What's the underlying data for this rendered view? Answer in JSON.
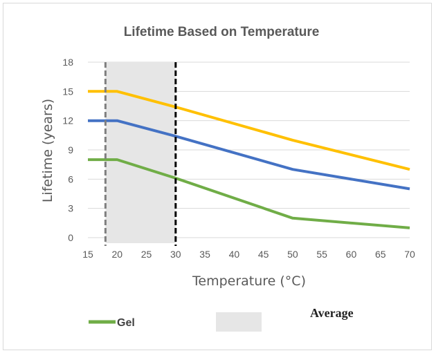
{
  "chart_data": {
    "type": "line",
    "title": "Lifetime Based on Temperature",
    "xlabel": "Temperature (°C)",
    "ylabel": "Lifetime (years)",
    "xlim": [
      15,
      70
    ],
    "ylim": [
      0,
      18
    ],
    "x_ticks": [
      "15",
      "20",
      "25",
      "30",
      "35",
      "40",
      "45",
      "50",
      "55",
      "60",
      "65",
      "70"
    ],
    "y_ticks": [
      "0",
      "3",
      "6",
      "9",
      "12",
      "15",
      "18"
    ],
    "grid": "horizontal",
    "series": [
      {
        "color": "#ffc000",
        "points": [
          [
            15,
            15
          ],
          [
            20,
            15
          ],
          [
            30,
            13.4
          ],
          [
            50,
            10
          ],
          [
            70,
            7
          ]
        ]
      },
      {
        "color": "#4472c4",
        "points": [
          [
            15,
            12
          ],
          [
            20,
            12
          ],
          [
            30,
            10.4
          ],
          [
            50,
            7
          ],
          [
            70,
            5
          ]
        ]
      },
      {
        "name": "Gel",
        "color": "#70ad47",
        "points": [
          [
            15,
            8
          ],
          [
            20,
            8
          ],
          [
            30,
            6.1
          ],
          [
            50,
            2
          ],
          [
            70,
            1
          ]
        ]
      }
    ],
    "shaded_region": {
      "x": [
        18,
        30
      ],
      "color": "#e6e6e6",
      "label": "Average"
    },
    "reference_lines": [
      {
        "x": 18,
        "color": "#7f7f7f",
        "style": "dashed"
      },
      {
        "x": 30,
        "color": "#000000",
        "style": "dashed"
      }
    ],
    "legend": {
      "placement": "bottom",
      "items": [
        {
          "label": "Gel",
          "kind": "line",
          "color": "#70ad47"
        },
        {
          "label": "Average",
          "kind": "box",
          "color": "#e6e6e6"
        }
      ]
    }
  }
}
